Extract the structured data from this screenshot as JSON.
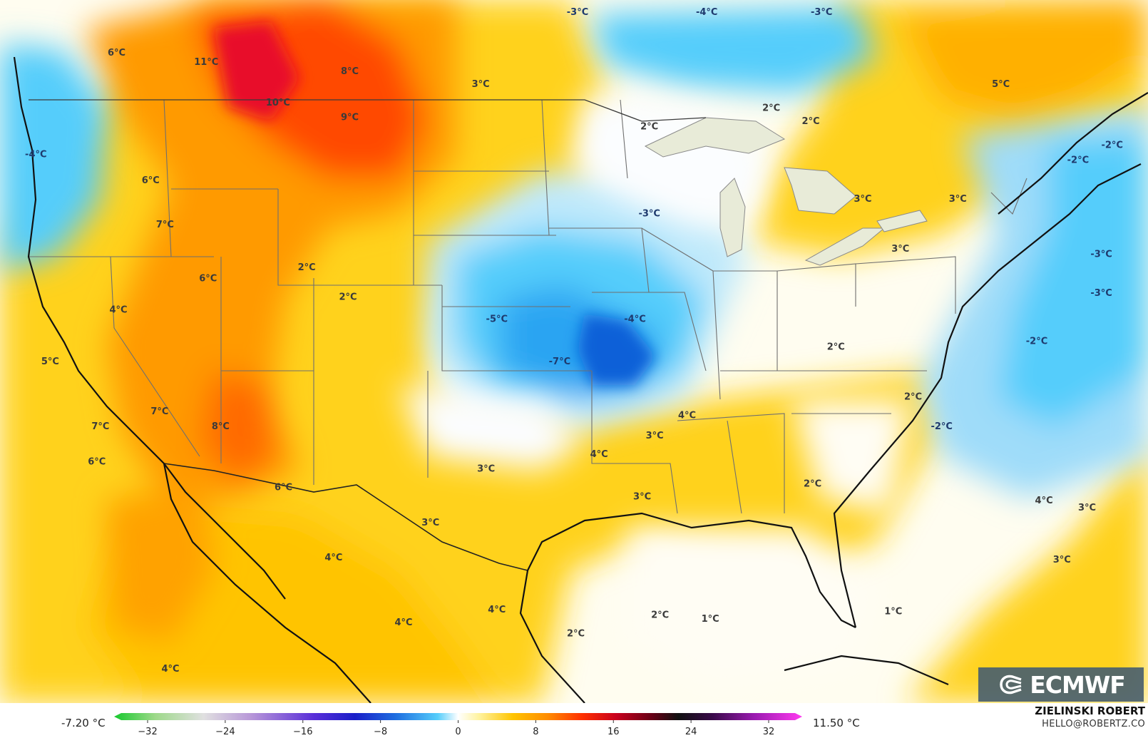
{
  "colors": {
    "background_neutral": "#ffffff",
    "warm_light": "#fff3b0",
    "warm_yellow": "#ffd21f",
    "warm_orange": "#ff9a00",
    "warm_red": "#ff3d00",
    "warm_dark": "#e0002a",
    "cold_light": "#d8f1fb",
    "cold_cyan": "#55cdfb",
    "cold_blue": "#2b9bf0",
    "cold_deep": "#1160d8",
    "lake_fill": "#e8ebd8",
    "logo_bg": "#4a606e"
  },
  "labels": [
    {
      "text": "6°C",
      "lon": -119.5,
      "lat": 49.0
    },
    {
      "text": "11°C",
      "lon": -114.5,
      "lat": 48.5
    },
    {
      "text": "8°C",
      "lon": -106.5,
      "lat": 48.0
    },
    {
      "text": "10°C",
      "lon": -110.5,
      "lat": 46.3
    },
    {
      "text": "9°C",
      "lon": -106.5,
      "lat": 45.5
    },
    {
      "text": "3°C",
      "lon": -99.2,
      "lat": 47.3
    },
    {
      "text": "-3°C",
      "lon": -93.8,
      "lat": 51.2
    },
    {
      "text": "-4°C",
      "lon": -86.6,
      "lat": 51.2
    },
    {
      "text": "-3°C",
      "lon": -80.2,
      "lat": 51.2
    },
    {
      "text": "5°C",
      "lon": -70.2,
      "lat": 47.3
    },
    {
      "text": "2°C",
      "lon": -83.0,
      "lat": 46.0
    },
    {
      "text": "2°C",
      "lon": -80.8,
      "lat": 45.3
    },
    {
      "text": "2°C",
      "lon": -89.8,
      "lat": 45.0
    },
    {
      "text": "-4°C",
      "lon": -124.0,
      "lat": 43.5
    },
    {
      "text": "6°C",
      "lon": -117.6,
      "lat": 42.1
    },
    {
      "text": "-2°C",
      "lon": -64.0,
      "lat": 44.0
    },
    {
      "text": "-2°C",
      "lon": -65.9,
      "lat": 43.2
    },
    {
      "text": "3°C",
      "lon": -77.9,
      "lat": 41.1
    },
    {
      "text": "3°C",
      "lon": -72.6,
      "lat": 41.1
    },
    {
      "text": "-3°C",
      "lon": -89.8,
      "lat": 40.3
    },
    {
      "text": "7°C",
      "lon": -116.8,
      "lat": 39.7
    },
    {
      "text": "3°C",
      "lon": -75.8,
      "lat": 38.4
    },
    {
      "text": "-3°C",
      "lon": -64.6,
      "lat": 38.1
    },
    {
      "text": "2°C",
      "lon": -108.9,
      "lat": 37.4
    },
    {
      "text": "6°C",
      "lon": -114.4,
      "lat": 36.8
    },
    {
      "text": "-3°C",
      "lon": -64.6,
      "lat": 36.0
    },
    {
      "text": "2°C",
      "lon": -106.6,
      "lat": 35.8
    },
    {
      "text": "4°C",
      "lon": -119.4,
      "lat": 35.1
    },
    {
      "text": "-5°C",
      "lon": -98.3,
      "lat": 34.6
    },
    {
      "text": "-4°C",
      "lon": -90.6,
      "lat": 34.6
    },
    {
      "text": "-2°C",
      "lon": -68.2,
      "lat": 33.4
    },
    {
      "text": "2°C",
      "lon": -79.4,
      "lat": 33.1
    },
    {
      "text": "5°C",
      "lon": -123.2,
      "lat": 32.3
    },
    {
      "text": "-7°C",
      "lon": -94.8,
      "lat": 32.3
    },
    {
      "text": "2°C",
      "lon": -75.1,
      "lat": 30.4
    },
    {
      "text": "7°C",
      "lon": -117.1,
      "lat": 29.6
    },
    {
      "text": "4°C",
      "lon": -87.7,
      "lat": 29.4
    },
    {
      "text": "7°C",
      "lon": -120.4,
      "lat": 28.8
    },
    {
      "text": "8°C",
      "lon": -113.7,
      "lat": 28.8
    },
    {
      "text": "-2°C",
      "lon": -73.5,
      "lat": 28.8
    },
    {
      "text": "3°C",
      "lon": -89.5,
      "lat": 28.3
    },
    {
      "text": "4°C",
      "lon": -92.6,
      "lat": 27.3
    },
    {
      "text": "6°C",
      "lon": -120.6,
      "lat": 26.9
    },
    {
      "text": "3°C",
      "lon": -98.9,
      "lat": 26.5
    },
    {
      "text": "2°C",
      "lon": -80.7,
      "lat": 25.7
    },
    {
      "text": "6°C",
      "lon": -110.2,
      "lat": 25.5
    },
    {
      "text": "3°C",
      "lon": -90.2,
      "lat": 25.0
    },
    {
      "text": "4°C",
      "lon": -67.8,
      "lat": 24.8
    },
    {
      "text": "3°C",
      "lon": -65.4,
      "lat": 24.4
    },
    {
      "text": "3°C",
      "lon": -102.0,
      "lat": 23.6
    },
    {
      "text": "4°C",
      "lon": -107.4,
      "lat": 21.7
    },
    {
      "text": "3°C",
      "lon": -66.8,
      "lat": 21.6
    },
    {
      "text": "4°C",
      "lon": -98.3,
      "lat": 18.9
    },
    {
      "text": "2°C",
      "lon": -89.2,
      "lat": 18.6
    },
    {
      "text": "1°C",
      "lon": -86.4,
      "lat": 18.4
    },
    {
      "text": "4°C",
      "lon": -103.5,
      "lat": 18.2
    },
    {
      "text": "2°C",
      "lon": -93.9,
      "lat": 17.6
    },
    {
      "text": "1°C",
      "lon": -76.2,
      "lat": 18.8
    },
    {
      "text": "4°C",
      "lon": -116.5,
      "lat": 15.7
    }
  ],
  "logo": {
    "text": "ECMWF",
    "icon": "ecmwf-swirl-icon"
  },
  "legend": {
    "min_label": "-7.20 °C",
    "max_label": "11.50 °C",
    "ticks": [
      "−32",
      "−24",
      "−16",
      "−8",
      "0",
      "8",
      "16",
      "24",
      "32"
    ],
    "range": [
      -32,
      32
    ]
  },
  "credit": {
    "author": "ZIELINSKI ROBERT",
    "email": "HELLO@ROBERTZ.CO"
  }
}
